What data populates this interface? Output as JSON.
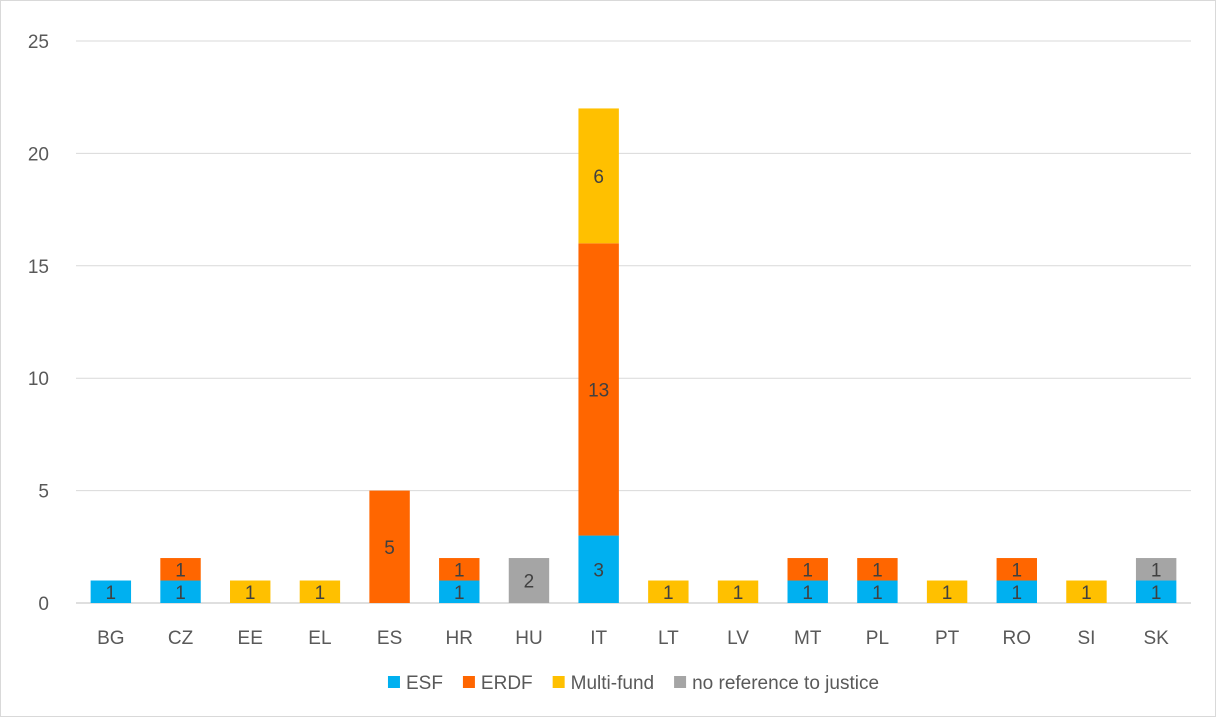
{
  "chart_data": {
    "type": "bar",
    "stacked": true,
    "title": "",
    "xlabel": "",
    "ylabel": "",
    "ylim": [
      0,
      25
    ],
    "yticks": [
      0,
      5,
      10,
      15,
      20,
      25
    ],
    "grid": true,
    "legend_position": "bottom",
    "categories": [
      "BG",
      "CZ",
      "EE",
      "EL",
      "ES",
      "HR",
      "HU",
      "IT",
      "LT",
      "LV",
      "MT",
      "PL",
      "PT",
      "RO",
      "SI",
      "SK"
    ],
    "series": [
      {
        "name": "ESF",
        "color": "#00B0F0",
        "values": [
          1,
          1,
          0,
          0,
          0,
          1,
          0,
          3,
          0,
          0,
          1,
          1,
          0,
          1,
          0,
          1
        ]
      },
      {
        "name": "ERDF",
        "color": "#FF6600",
        "values": [
          0,
          1,
          0,
          0,
          5,
          1,
          0,
          13,
          0,
          0,
          1,
          1,
          0,
          1,
          0,
          0
        ]
      },
      {
        "name": "Multi-fund",
        "color": "#FFC000",
        "values": [
          0,
          0,
          1,
          1,
          0,
          0,
          0,
          6,
          1,
          1,
          0,
          0,
          1,
          0,
          1,
          0
        ]
      },
      {
        "name": "no reference to justice",
        "color": "#A5A5A5",
        "values": [
          0,
          0,
          0,
          0,
          0,
          0,
          2,
          0,
          0,
          0,
          0,
          0,
          0,
          0,
          0,
          1
        ]
      }
    ]
  }
}
